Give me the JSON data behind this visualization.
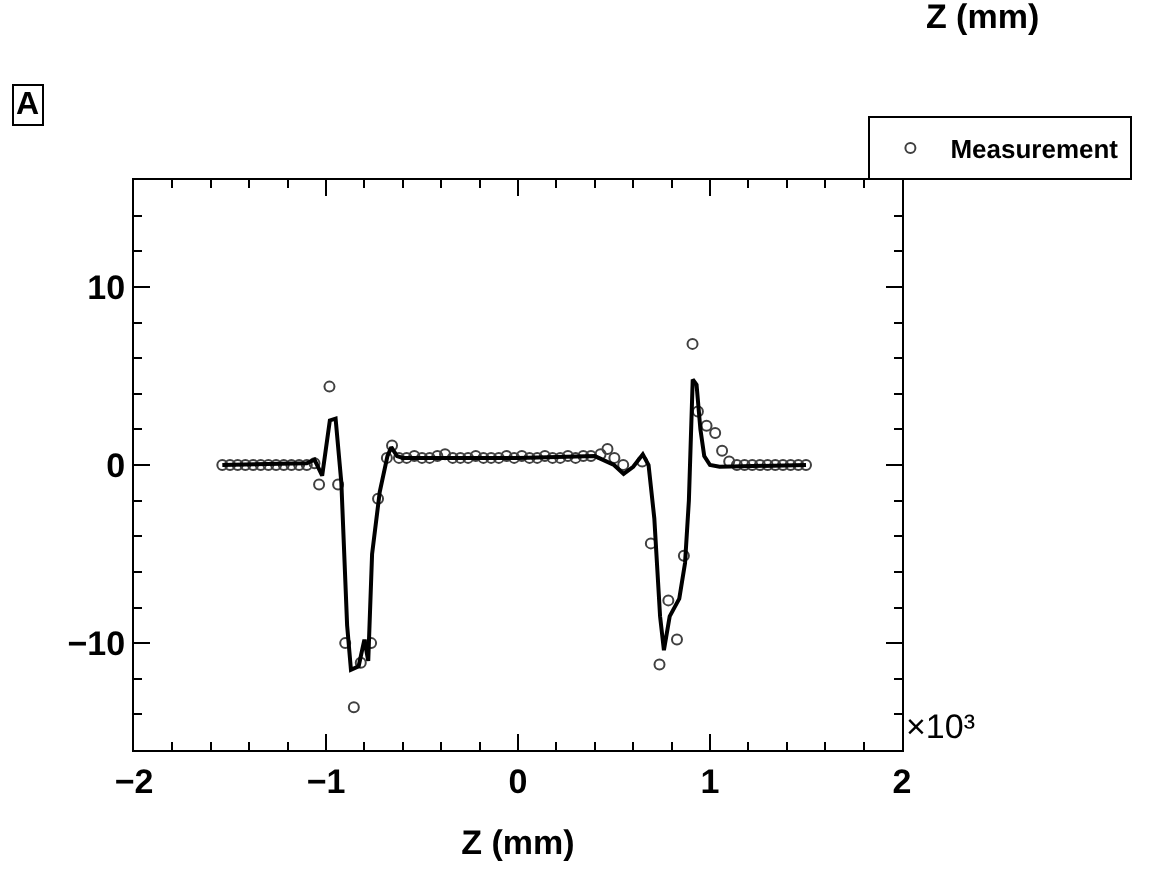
{
  "chart_data": {
    "type": "scatter",
    "title": "Z (mm)",
    "xlabel": "Z (mm)",
    "annotations": [
      "A",
      "×10³"
    ],
    "xlim": [
      -2,
      2
    ],
    "xticks": [
      {
        "value": -2,
        "label": "−2"
      },
      {
        "value": -1,
        "label": "−1"
      },
      0,
      1,
      2
    ],
    "ylim": [
      -16,
      16
    ],
    "yticks": [
      {
        "value": -10,
        "label": "−10"
      },
      0,
      10
    ],
    "legend": "top right",
    "marker": "circle",
    "series": [
      {
        "name": "Measurement",
        "color": "#404040",
        "x": [
          -1.54,
          -1.5,
          -1.46,
          -1.42,
          -1.38,
          -1.34,
          -1.3,
          -1.26,
          -1.22,
          -1.18,
          -1.14,
          -1.1,
          -1.06,
          -1.036,
          -0.982,
          -0.937,
          -0.9,
          -0.855,
          -0.819,
          -0.765,
          -0.729,
          -0.683,
          -0.656,
          -0.62,
          -0.58,
          -0.54,
          -0.5,
          -0.46,
          -0.42,
          -0.38,
          -0.34,
          -0.3,
          -0.26,
          -0.22,
          -0.18,
          -0.14,
          -0.1,
          -0.06,
          -0.02,
          0.02,
          0.06,
          0.1,
          0.14,
          0.18,
          0.22,
          0.26,
          0.3,
          0.34,
          0.38,
          0.43,
          0.466,
          0.502,
          0.548,
          0.647,
          0.692,
          0.737,
          0.783,
          0.828,
          0.864,
          0.909,
          0.937,
          0.982,
          1.027,
          1.063,
          1.1,
          1.14,
          1.18,
          1.22,
          1.26,
          1.3,
          1.34,
          1.38,
          1.42,
          1.46,
          1.5
        ],
        "values": [
          0,
          0,
          0,
          0,
          0,
          0,
          0,
          0,
          0,
          0,
          0,
          0,
          0.1,
          -1.1,
          4.4,
          -1.1,
          -10.0,
          -13.6,
          -11.1,
          -10.0,
          -1.9,
          0.4,
          1.1,
          0.4,
          0.4,
          0.5,
          0.4,
          0.4,
          0.5,
          0.6,
          0.4,
          0.4,
          0.4,
          0.5,
          0.4,
          0.4,
          0.4,
          0.5,
          0.4,
          0.5,
          0.4,
          0.4,
          0.5,
          0.4,
          0.4,
          0.5,
          0.4,
          0.5,
          0.5,
          0.6,
          0.9,
          0.4,
          0,
          0.2,
          -4.4,
          -11.2,
          -7.6,
          -9.8,
          -5.1,
          6.8,
          3.0,
          2.2,
          1.8,
          0.8,
          0.2,
          0,
          0,
          0,
          0,
          0,
          0,
          0,
          0,
          0,
          0
        ]
      },
      {
        "type": "line",
        "color": "#000000",
        "marker": "none",
        "line_style": "solid",
        "x": [
          -1.54,
          -1.1,
          -1.06,
          -1.02,
          -0.98,
          -0.95,
          -0.92,
          -0.89,
          -0.87,
          -0.83,
          -0.8,
          -0.78,
          -0.76,
          -0.72,
          -0.68,
          -0.66,
          -0.63,
          -0.6,
          0,
          0.4,
          0.5,
          0.55,
          0.6,
          0.65,
          0.68,
          0.71,
          0.74,
          0.76,
          0.79,
          0.84,
          0.87,
          0.89,
          0.91,
          0.93,
          0.95,
          0.97,
          1.0,
          1.05,
          1.5
        ],
        "values": [
          0,
          0.1,
          0.3,
          -0.6,
          2.5,
          2.6,
          -1,
          -9,
          -11.5,
          -11.3,
          -9.8,
          -11,
          -5,
          -1.5,
          0.5,
          1.0,
          0.5,
          0.4,
          0.4,
          0.5,
          0,
          -0.5,
          -0.1,
          0.6,
          0,
          -3,
          -8.5,
          -10.4,
          -8.5,
          -7.5,
          -5.5,
          -2,
          4.8,
          4.5,
          2,
          0.5,
          0,
          -0.1,
          0
        ]
      }
    ]
  }
}
